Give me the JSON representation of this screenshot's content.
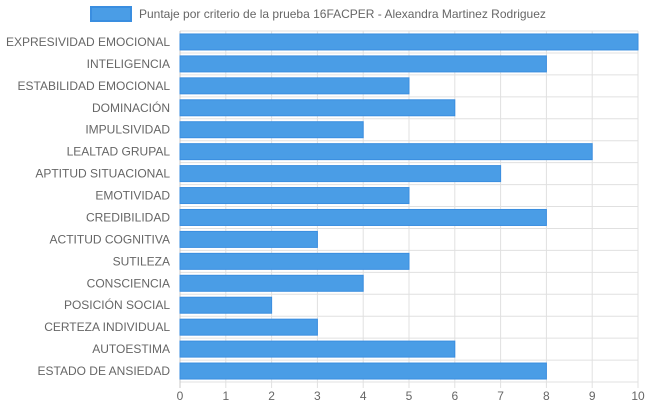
{
  "chart_data": {
    "type": "bar",
    "orientation": "horizontal",
    "categories": [
      "EXPRESIVIDAD EMOCIONAL",
      "INTELIGENCIA",
      "ESTABILIDAD EMOCIONAL",
      "DOMINACIÓN",
      "IMPULSIVIDAD",
      "LEALTAD GRUPAL",
      "APTITUD SITUACIONAL",
      "EMOTIVIDAD",
      "CREDIBILIDAD",
      "ACTITUD COGNITIVA",
      "SUTILEZA",
      "CONSCIENCIA",
      "POSICIÓN SOCIAL",
      "CERTEZA INDIVIDUAL",
      "AUTOESTIMA",
      "ESTADO DE ANSIEDAD"
    ],
    "series": [
      {
        "name": "Puntaje por criterio de la prueba 16FACPER - Alexandra Martinez Rodriguez",
        "values": [
          10,
          8,
          5,
          6,
          4,
          9,
          7,
          5,
          8,
          3,
          5,
          4,
          2,
          3,
          6,
          8
        ]
      }
    ],
    "xlim": [
      0,
      10
    ],
    "x_ticks": [
      "0",
      "1",
      "2",
      "3",
      "4",
      "5",
      "6",
      "7",
      "8",
      "9",
      "10"
    ],
    "grid": true,
    "legend_position": "top",
    "colors": {
      "bar_fill": "#4a9de6",
      "bar_stroke": "#3a8ee0",
      "grid": "#e0e0e0",
      "axis": "#c8c8c8",
      "text": "#666666"
    }
  }
}
